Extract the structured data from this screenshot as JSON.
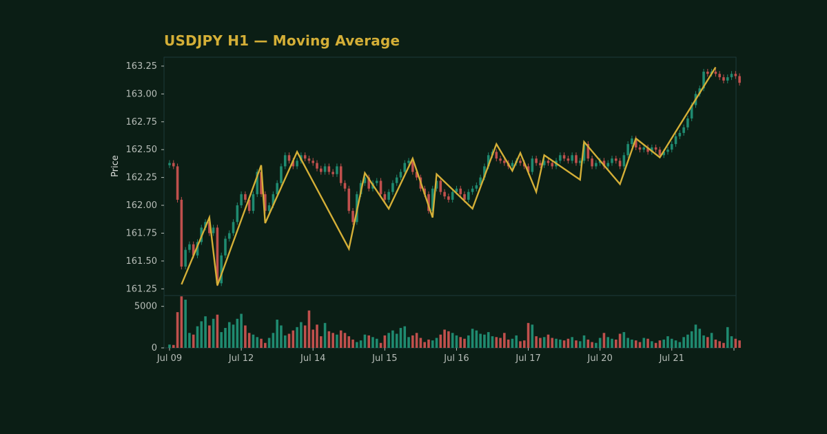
{
  "chart_data": {
    "type": "candlestick",
    "title": "USDJPY H1 — Moving Average",
    "ylabel": "Price",
    "ylim": [
      161.19,
      163.33
    ],
    "yticks": [
      "161.25",
      "161.50",
      "161.75",
      "162.00",
      "162.25",
      "162.50",
      "162.75",
      "163.00",
      "163.25"
    ],
    "volume_ylim": [
      0,
      6300
    ],
    "volume_ticks": [
      "0",
      "5000"
    ],
    "x_tick_labels": [
      "Jul 09",
      "Jul 12",
      "Jul 14",
      "Jul 15",
      "Jul 16",
      "Jul 17",
      "Jul 20",
      "Jul 21"
    ],
    "x_tick_bar_index": [
      0,
      18,
      36,
      54,
      72,
      90,
      108,
      126
    ],
    "bar_count": 144,
    "colors": {
      "up": "#1f8a70",
      "down": "#c0504d",
      "ma": "#d4af37",
      "text": "#b7bdb8",
      "grid": "#1d3a3a",
      "background": "#0b1e15"
    },
    "ma_line": {
      "style": "zigzag",
      "points": [
        [
          3,
          161.29
        ],
        [
          10,
          161.89
        ],
        [
          12,
          161.28
        ],
        [
          23,
          162.36
        ],
        [
          24,
          161.84
        ],
        [
          32,
          162.48
        ],
        [
          45,
          161.61
        ],
        [
          49,
          162.29
        ],
        [
          55,
          161.97
        ],
        [
          61,
          162.42
        ],
        [
          66,
          161.89
        ],
        [
          67,
          162.28
        ],
        [
          76,
          161.97
        ],
        [
          82,
          162.55
        ],
        [
          86,
          162.31
        ],
        [
          88,
          162.47
        ],
        [
          92,
          162.12
        ],
        [
          94,
          162.45
        ],
        [
          103,
          162.23
        ],
        [
          104,
          162.57
        ],
        [
          113,
          162.19
        ],
        [
          117,
          162.6
        ],
        [
          123,
          162.43
        ],
        [
          137,
          163.24
        ]
      ]
    },
    "candles_close": [
      162.38,
      162.35,
      162.05,
      161.45,
      161.6,
      161.65,
      161.55,
      161.67,
      161.8,
      161.85,
      161.75,
      161.8,
      161.3,
      161.55,
      161.7,
      161.75,
      161.85,
      162.0,
      162.1,
      162.05,
      161.95,
      162.1,
      162.3,
      162.1,
      161.95,
      162.0,
      162.1,
      162.2,
      162.35,
      162.45,
      162.4,
      162.35,
      162.4,
      162.45,
      162.42,
      162.4,
      162.38,
      162.33,
      162.3,
      162.35,
      162.3,
      162.28,
      162.35,
      162.2,
      162.15,
      161.95,
      161.85,
      162.1,
      162.2,
      162.25,
      162.15,
      162.2,
      162.22,
      162.1,
      162.05,
      162.12,
      162.2,
      162.25,
      162.3,
      162.38,
      162.4,
      162.3,
      162.25,
      162.15,
      162.1,
      161.95,
      162.15,
      162.22,
      162.12,
      162.08,
      162.05,
      162.12,
      162.15,
      162.1,
      162.05,
      162.12,
      162.15,
      162.18,
      162.25,
      162.35,
      162.45,
      162.48,
      162.42,
      162.4,
      162.38,
      162.35,
      162.38,
      162.4,
      162.38,
      162.35,
      162.3,
      162.42,
      162.38,
      162.36,
      162.4,
      162.38,
      162.35,
      162.4,
      162.45,
      162.42,
      162.4,
      162.45,
      162.38,
      162.4,
      162.55,
      162.42,
      162.35,
      162.38,
      162.4,
      162.35,
      162.38,
      162.42,
      162.4,
      162.35,
      162.45,
      162.55,
      162.6,
      162.52,
      162.5,
      162.52,
      162.48,
      162.52,
      162.5,
      162.45,
      162.48,
      162.5,
      162.55,
      162.62,
      162.65,
      162.7,
      162.78,
      162.9,
      163.0,
      163.05,
      163.2,
      163.18,
      163.2,
      163.18,
      163.15,
      163.12,
      163.15,
      163.18,
      163.16,
      163.1
    ],
    "volume": [
      400,
      350,
      4300,
      6200,
      5800,
      1800,
      1600,
      2600,
      3200,
      3800,
      2700,
      3500,
      4000,
      1900,
      2400,
      3100,
      2800,
      3500,
      4100,
      2700,
      1800,
      1600,
      1300,
      1100,
      600,
      1200,
      1800,
      3400,
      2700,
      1500,
      1700,
      2100,
      2500,
      3100,
      2700,
      4500,
      2200,
      2800,
      1400,
      3000,
      2000,
      1800,
      1600,
      2100,
      1800,
      1400,
      1000,
      700,
      900,
      1600,
      1500,
      1300,
      1100,
      600,
      1500,
      1800,
      2100,
      1700,
      2400,
      2600,
      1300,
      1500,
      1800,
      1200,
      700,
      1000,
      900,
      1200,
      1600,
      2200,
      2000,
      1800,
      1500,
      1300,
      1100,
      1500,
      2300,
      2100,
      1700,
      1600,
      1900,
      1400,
      1300,
      1200,
      1800,
      1000,
      1100,
      1500,
      800,
      900,
      3000,
      2800,
      1400,
      1200,
      1300,
      1600,
      1200,
      1100,
      1000,
      900,
      1100,
      1300,
      900,
      800,
      1500,
      1000,
      700,
      600,
      1200,
      1800,
      1300,
      1100,
      1000,
      1700,
      1900,
      1200,
      1000,
      900,
      700,
      1200,
      1100,
      800,
      600,
      900,
      1000,
      1400,
      1100,
      900,
      700,
      1300,
      1600,
      2000,
      2800,
      2300,
      1500,
      1300,
      1800,
      1000,
      800,
      600,
      2500,
      1400,
      1100,
      900
    ]
  }
}
